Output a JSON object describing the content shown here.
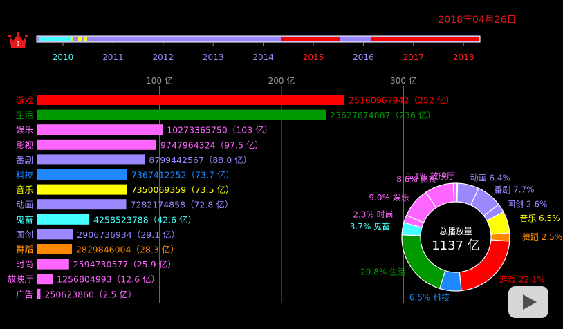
{
  "date": "2018年04月26日",
  "rank_badge": "1",
  "timeline": {
    "years": [
      "2010",
      "2011",
      "2012",
      "2013",
      "2014",
      "2015",
      "2016",
      "2017",
      "2018"
    ],
    "year_colors": [
      "#5ff",
      "#9c8cff",
      "#9c8cff",
      "#9c8cff",
      "#9c8cff",
      "#f22",
      "#9c8cff",
      "#f22",
      "#f22"
    ]
  },
  "colors": {
    "游戏": "#ff0000",
    "生活": "#009900",
    "娱乐": "#ff66ff",
    "影视": "#ff66ff",
    "番剧": "#9a88ff",
    "科技": "#1e88ff",
    "音乐": "#ffff00",
    "动画": "#9a88ff",
    "鬼畜": "#44ffff",
    "国创": "#9a88ff",
    "舞蹈": "#ff8800",
    "时尚": "#ff66ff",
    "放映厅": "#ff66ff",
    "广告": "#ff66ff"
  },
  "chart_data": [
    {
      "type": "bar",
      "orientation": "horizontal",
      "x_ticks": [
        "100 亿",
        "200 亿",
        "300 亿"
      ],
      "x_tick_values": [
        100,
        200,
        300
      ],
      "unit": "亿",
      "categories": [
        "游戏",
        "生活",
        "娱乐",
        "影视",
        "番剧",
        "科技",
        "音乐",
        "动画",
        "鬼畜",
        "国创",
        "舞蹈",
        "时尚",
        "放映厅",
        "广告"
      ],
      "values": [
        25160967942,
        23627674887,
        10273365750,
        9747964324,
        8799442567,
        7367412252,
        7350069359,
        7282174858,
        4258523788,
        2906736934,
        2829846004,
        2594730577,
        1256804993,
        250623860
      ],
      "value_labels": [
        "25160967942（252 亿）",
        "23627674887（236 亿）",
        "10273365750（103 亿）",
        "9747964324（97.5 亿）",
        "8799442567（88.0 亿）",
        "7367412252（73.7 亿）",
        "7350069359（73.5 亿）",
        "7282174858（72.8 亿）",
        "4258523788（42.6 亿）",
        "2906736934（29.1 亿）",
        "2829846004（28.3 亿）",
        "2594730577（25.9 亿）",
        "1256804993（12.6 亿）",
        "250623860（2.5 亿）"
      ]
    },
    {
      "type": "pie",
      "donut": true,
      "center_label": "总播放量",
      "center_value": "1137 亿",
      "slices": [
        {
          "name": "动画",
          "percent": 6.4,
          "label": "动画 6.4%"
        },
        {
          "name": "番剧",
          "percent": 7.7,
          "label": "番剧 7.7%"
        },
        {
          "name": "国创",
          "percent": 2.6,
          "label": "国创 2.6%"
        },
        {
          "name": "音乐",
          "percent": 6.5,
          "label": "音乐 6.5%"
        },
        {
          "name": "舞蹈",
          "percent": 2.5,
          "label": "舞蹈 2.5%"
        },
        {
          "name": "游戏",
          "percent": 22.1,
          "label": "游戏 22.1%"
        },
        {
          "name": "科技",
          "percent": 6.5,
          "label": "6.5%  科技"
        },
        {
          "name": "生活",
          "percent": 20.8,
          "label": "20.8%  生活"
        },
        {
          "name": "鬼畜",
          "percent": 3.7,
          "label": "3.7%  鬼畜"
        },
        {
          "name": "时尚",
          "percent": 2.3,
          "label": "2.3%  时尚"
        },
        {
          "name": "娱乐",
          "percent": 9.0,
          "label": "9.0%  娱乐"
        },
        {
          "name": "影视",
          "percent": 8.6,
          "label": "8.6%  影视"
        },
        {
          "name": "放映厅",
          "percent": 1.1,
          "label": "1.1%  放映厅"
        }
      ]
    }
  ]
}
